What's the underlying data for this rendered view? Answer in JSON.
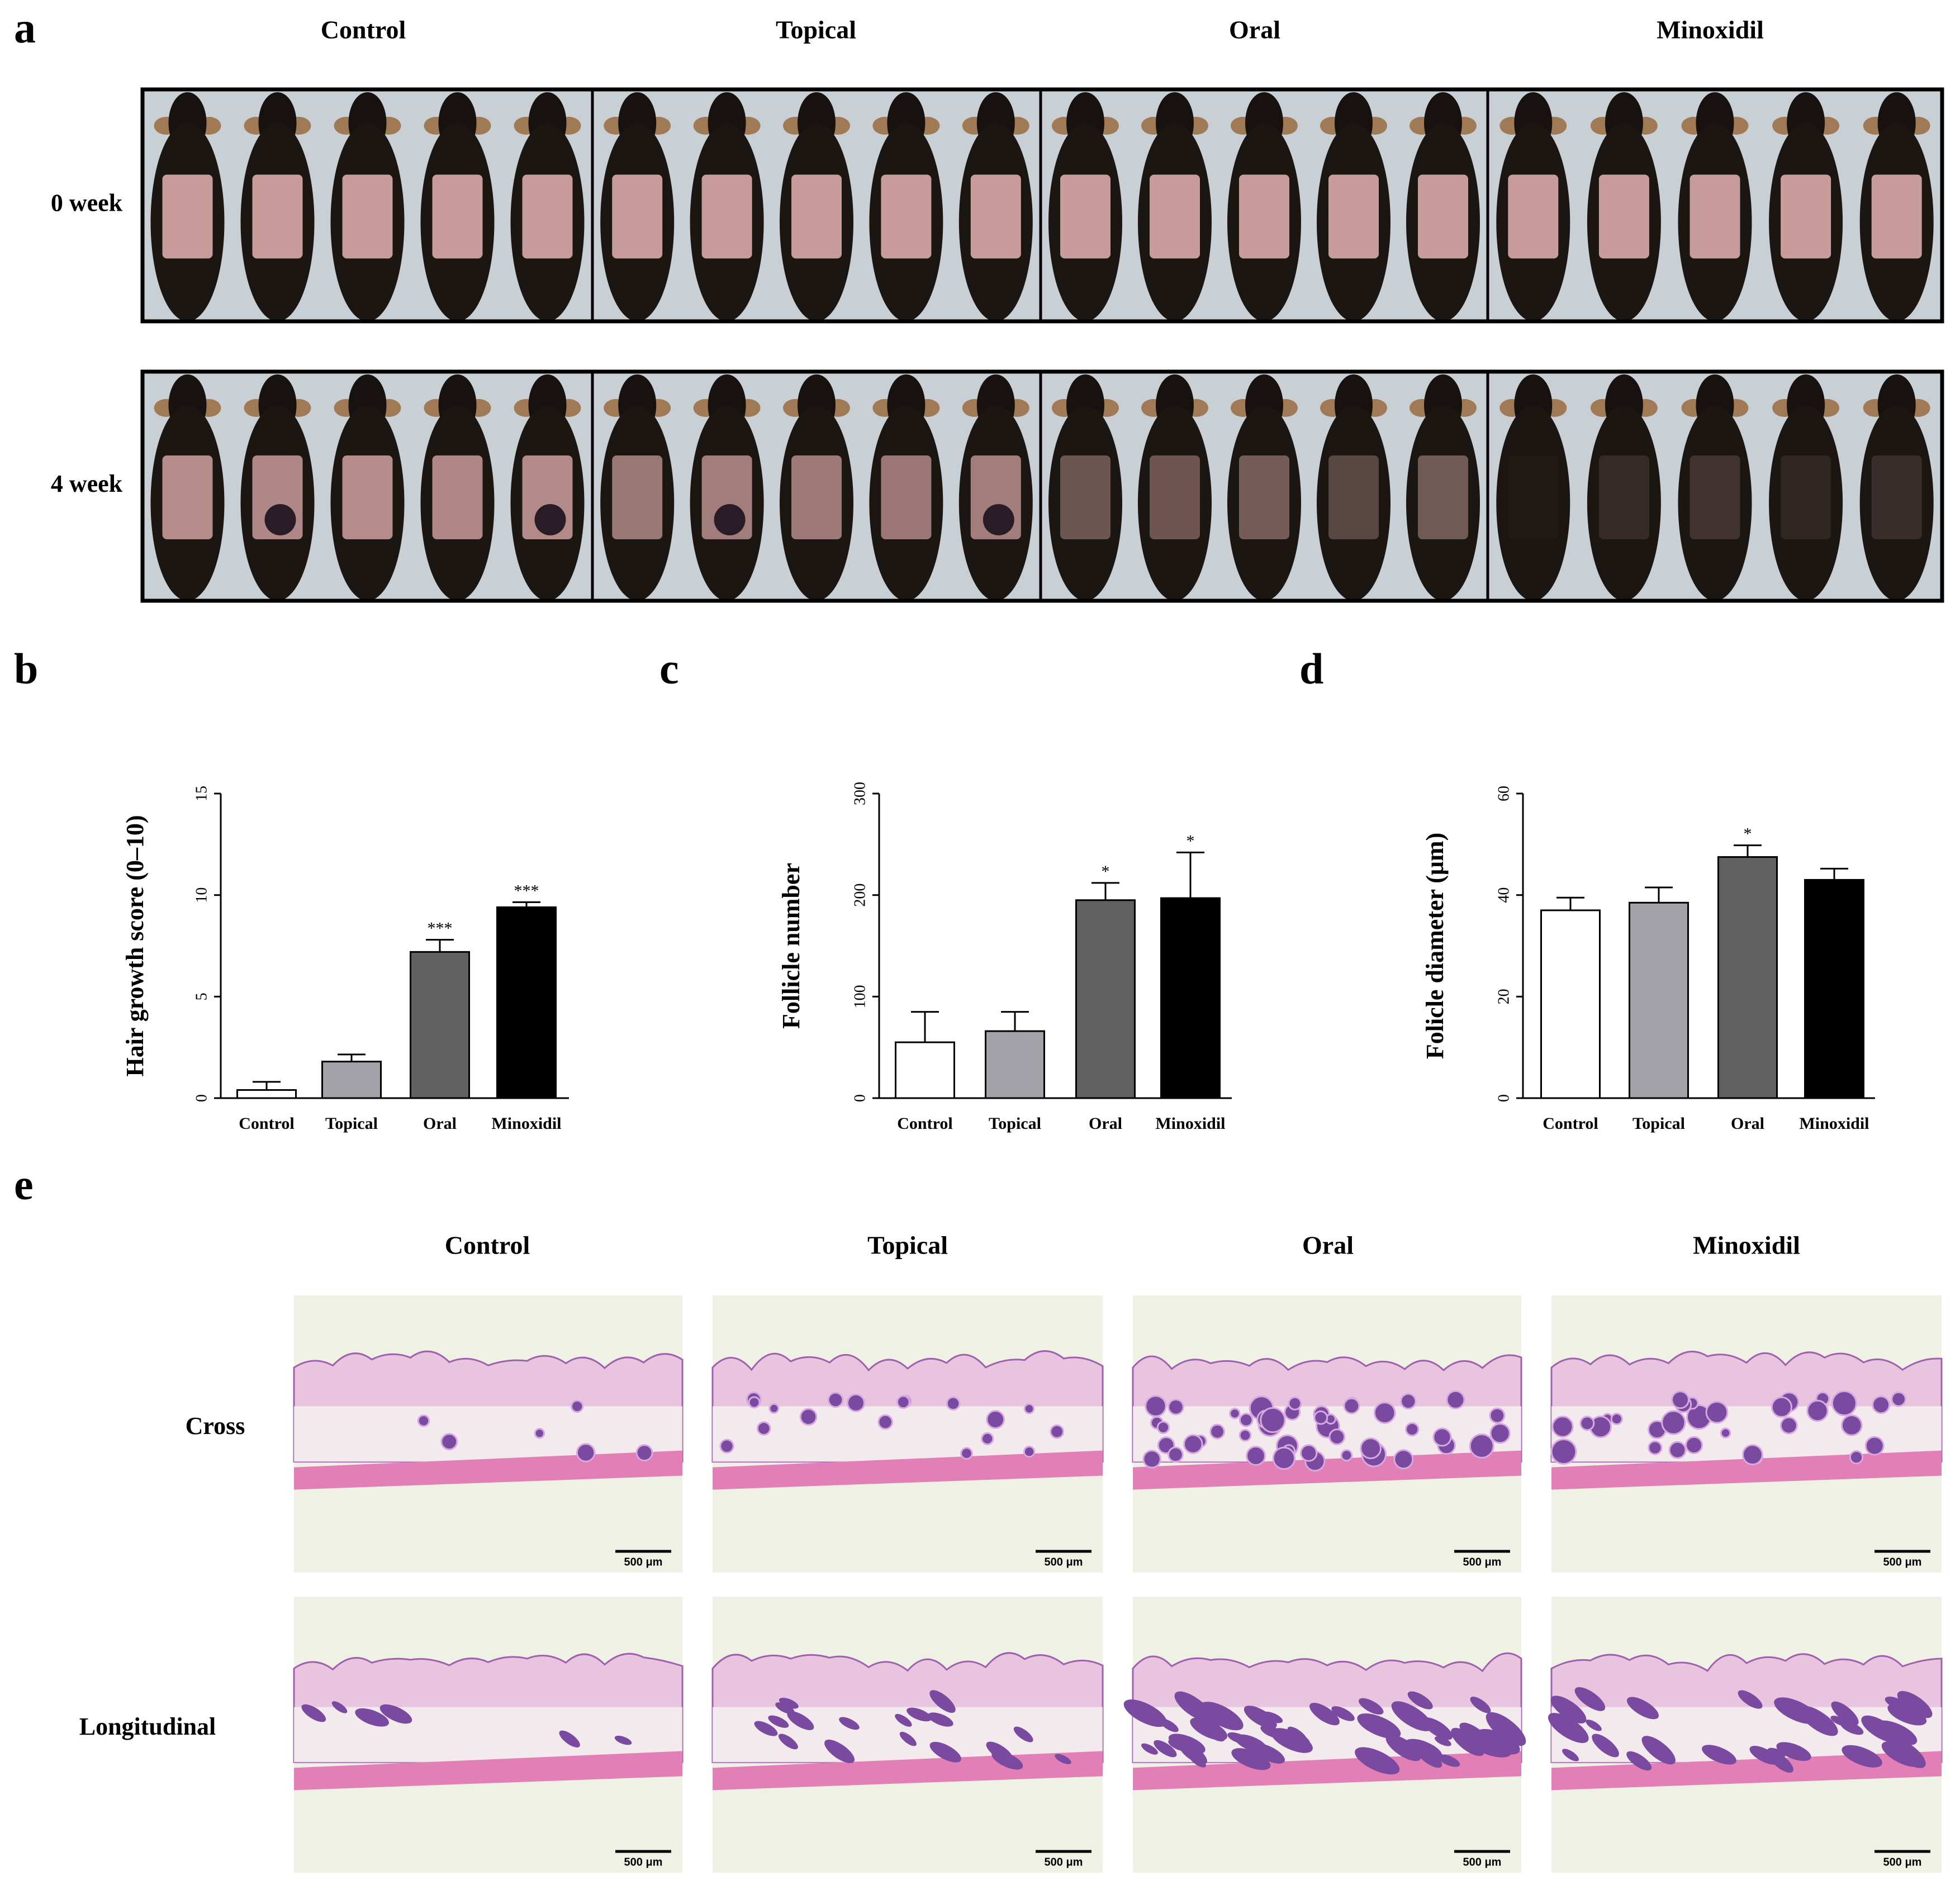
{
  "panel_labels": [
    "a",
    "b",
    "c",
    "d",
    "e"
  ],
  "photos_a": {
    "columns": [
      "Control",
      "Topical",
      "Oral",
      "Minoxidil"
    ],
    "rows": [
      "0 week",
      "4 week"
    ]
  },
  "histology_e": {
    "columns": [
      "Control",
      "Topical",
      "Oral",
      "Minoxidil"
    ],
    "rows": [
      "Cross",
      "Longitudinal"
    ],
    "scale_bar": "500 μm"
  },
  "chart_data": [
    {
      "type": "bar",
      "ylabel": "Hair growth score (0–10)",
      "categories": [
        "Control",
        "Topical",
        "Oral",
        "Minoxidil"
      ],
      "values": [
        0.4,
        1.8,
        7.2,
        9.4
      ],
      "errors": [
        0.4,
        0.35,
        0.6,
        0.25
      ],
      "significance": [
        null,
        null,
        "***",
        "***"
      ],
      "colors": [
        "#ffffff",
        "#a2a2a8",
        "#606060",
        "#000000"
      ],
      "ylim": [
        0,
        15
      ],
      "yticks": [
        0,
        5,
        10,
        15
      ]
    },
    {
      "type": "bar",
      "ylabel": "Follicle number",
      "categories": [
        "Control",
        "Topical",
        "Oral",
        "Minoxidil"
      ],
      "values": [
        55,
        66,
        195,
        197
      ],
      "errors": [
        30,
        19,
        17,
        45
      ],
      "significance": [
        null,
        null,
        "*",
        "*"
      ],
      "colors": [
        "#ffffff",
        "#a2a2a8",
        "#606060",
        "#000000"
      ],
      "ylim": [
        0,
        300
      ],
      "yticks": [
        0,
        100,
        200,
        300
      ]
    },
    {
      "type": "bar",
      "ylabel": "Folicle diameter (μm)",
      "categories": [
        "Control",
        "Topical",
        "Oral",
        "Minoxidil"
      ],
      "values": [
        37,
        38.5,
        47.5,
        43
      ],
      "errors": [
        2.5,
        3,
        2.3,
        2.2
      ],
      "significance": [
        null,
        null,
        "*",
        null
      ],
      "colors": [
        "#ffffff",
        "#a2a2a8",
        "#606060",
        "#000000"
      ],
      "ylim": [
        0,
        60
      ],
      "yticks": [
        0,
        20,
        40,
        60
      ]
    }
  ]
}
